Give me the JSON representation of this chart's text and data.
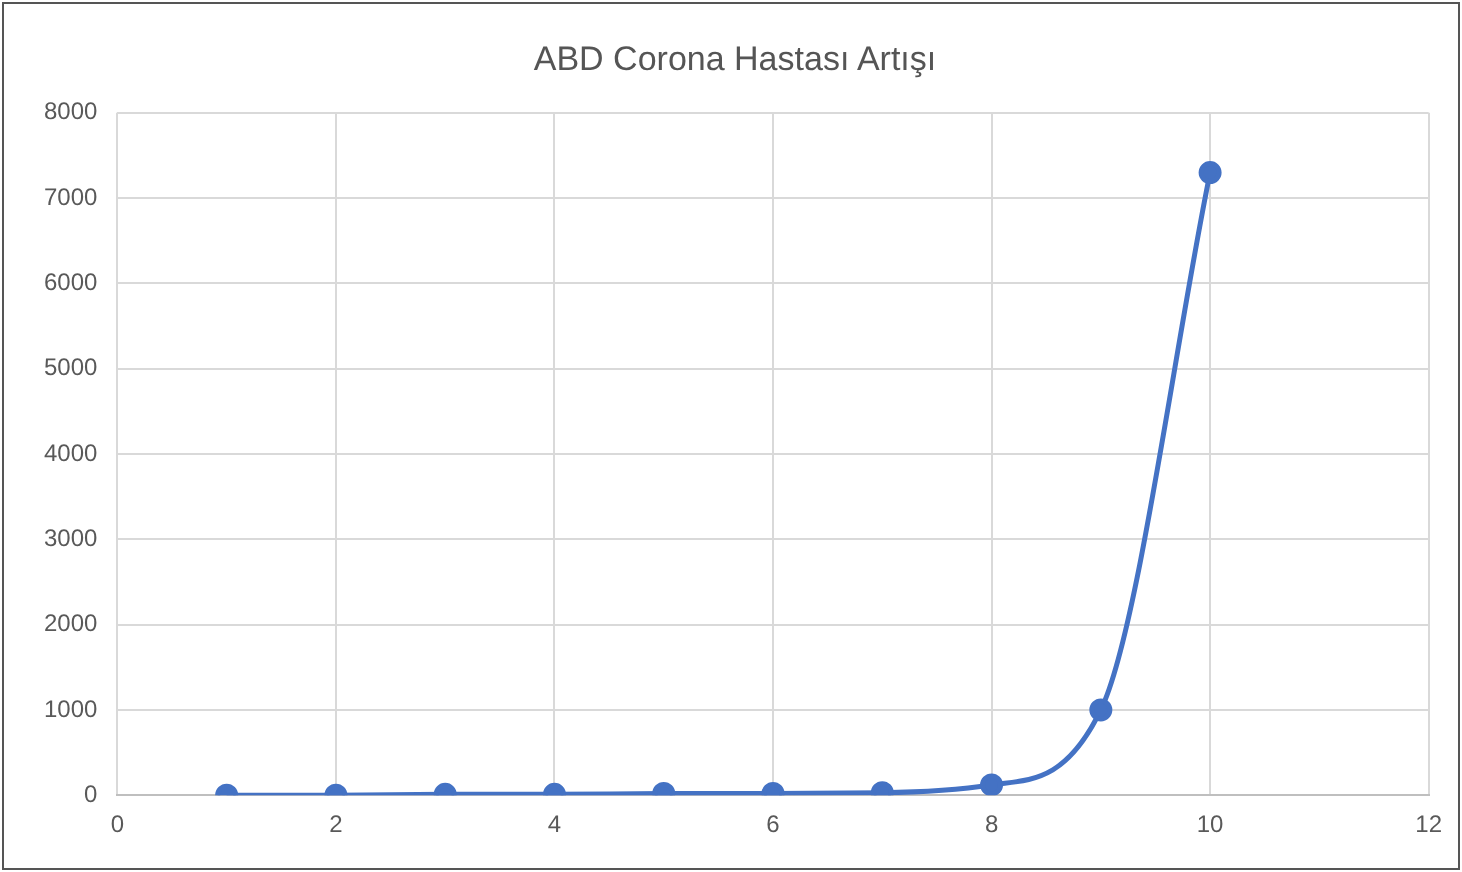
{
  "chart_data": {
    "type": "line",
    "title": "ABD Corona Hastası Artışı",
    "x": [
      1,
      2,
      3,
      4,
      5,
      6,
      7,
      8,
      9,
      10
    ],
    "series": [
      {
        "color": "#4472c4",
        "values": [
          0,
          0,
          10,
          10,
          20,
          20,
          30,
          120,
          1000,
          7300
        ]
      }
    ],
    "xlim": [
      0,
      12
    ],
    "xticks": [
      0,
      2,
      4,
      6,
      8,
      10,
      12
    ],
    "ylim": [
      0,
      8000
    ],
    "yticks": [
      0,
      1000,
      2000,
      3000,
      4000,
      5000,
      6000,
      7000,
      8000
    ],
    "grid": true,
    "legend": false,
    "marker": "circle",
    "line_style": "solid"
  }
}
